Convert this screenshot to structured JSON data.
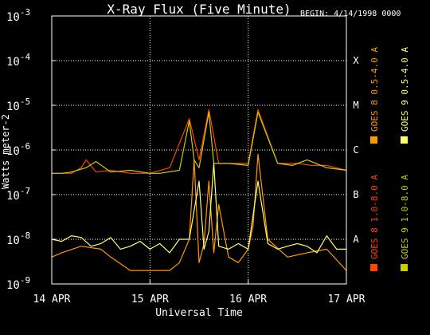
{
  "chart_data": {
    "type": "line",
    "title": "X-Ray Flux (Five Minute)",
    "begin_label": "BEGIN: 4/14/1998 0000",
    "xlabel": "Universal Time",
    "ylabel": "Watts meter-2",
    "x_ticks": [
      "14 APR",
      "15 APR",
      "16 APR",
      "17 APR"
    ],
    "x_range_days": [
      0,
      3
    ],
    "y_scale": "log",
    "ylim": [
      1e-09,
      0.001
    ],
    "y_ticks": [
      {
        "base": "10",
        "exp": "-3",
        "value": 0.001
      },
      {
        "base": "10",
        "exp": "-4",
        "value": 0.0001
      },
      {
        "base": "10",
        "exp": "-5",
        "value": 1e-05
      },
      {
        "base": "10",
        "exp": "-6",
        "value": 1e-06
      },
      {
        "base": "10",
        "exp": "-7",
        "value": 1e-07
      },
      {
        "base": "10",
        "exp": "-8",
        "value": 1e-08
      },
      {
        "base": "10",
        "exp": "-9",
        "value": 1e-09
      }
    ],
    "flare_classes": [
      {
        "label": "X",
        "value": 0.0001
      },
      {
        "label": "M",
        "value": 1e-05
      },
      {
        "label": "C",
        "value": 1e-06
      },
      {
        "label": "B",
        "value": 1e-07
      },
      {
        "label": "A",
        "value": 1e-08
      }
    ],
    "grid": "dotted",
    "legend_position": "right",
    "series": [
      {
        "name": "GOES 8 1.0-8.0 A",
        "color": "#ff4400",
        "x": [
          0,
          0.1,
          0.2,
          0.3,
          0.35,
          0.45,
          0.6,
          0.8,
          1.0,
          1.2,
          1.4,
          1.5,
          1.6,
          1.7,
          1.8,
          2.0,
          2.1,
          2.3,
          2.5,
          2.65,
          2.8,
          3.0
        ],
        "y": [
          3e-07,
          3e-07,
          3e-07,
          4e-07,
          6e-07,
          3.2e-07,
          3.5e-07,
          3e-07,
          3e-07,
          4e-07,
          5e-06,
          6e-07,
          8e-06,
          5e-07,
          5e-07,
          5e-07,
          8e-06,
          5e-07,
          5e-07,
          4.5e-07,
          4.5e-07,
          3.5e-07
        ]
      },
      {
        "name": "GOES 8 0.5-4.0 A",
        "color": "#ff9900",
        "x": [
          0,
          0.1,
          0.3,
          0.5,
          0.6,
          0.8,
          1.0,
          1.2,
          1.3,
          1.4,
          1.45,
          1.5,
          1.55,
          1.6,
          1.65,
          1.7,
          1.8,
          1.9,
          2.0,
          2.05,
          2.1,
          2.2,
          2.4,
          2.6,
          2.8,
          3.0
        ],
        "y": [
          4e-09,
          5e-09,
          7e-09,
          6e-09,
          4e-09,
          2e-09,
          2e-09,
          2e-09,
          3e-09,
          1e-08,
          6e-07,
          3e-09,
          8e-09,
          2e-07,
          5e-09,
          6e-08,
          4e-09,
          3e-09,
          6e-09,
          2e-08,
          8e-07,
          1e-08,
          4e-09,
          5e-09,
          6e-09,
          2e-09
        ]
      },
      {
        "name": "GOES 9 1.0-8.0 A",
        "color": "#cccc00",
        "x": [
          0,
          0.1,
          0.2,
          0.35,
          0.45,
          0.6,
          0.8,
          1.0,
          1.1,
          1.3,
          1.4,
          1.45,
          1.5,
          1.6,
          1.65,
          1.8,
          2.0,
          2.1,
          2.3,
          2.45,
          2.6,
          2.8,
          3.0
        ],
        "y": [
          3e-07,
          3e-07,
          3.2e-07,
          4e-07,
          5.5e-07,
          3.2e-07,
          3.5e-07,
          3e-07,
          3e-07,
          3.5e-07,
          4.5e-06,
          6e-07,
          4e-07,
          7e-06,
          5e-07,
          5e-07,
          4.5e-07,
          7e-06,
          5e-07,
          4.5e-07,
          6e-07,
          4e-07,
          3.5e-07
        ]
      },
      {
        "name": "GOES 9 0.5-4.0 A",
        "color": "#ffff66",
        "x": [
          0,
          0.1,
          0.2,
          0.3,
          0.4,
          0.5,
          0.6,
          0.7,
          0.8,
          0.9,
          1.0,
          1.1,
          1.2,
          1.3,
          1.4,
          1.5,
          1.55,
          1.6,
          1.65,
          1.7,
          1.8,
          1.9,
          2.0,
          2.1,
          2.2,
          2.3,
          2.4,
          2.5,
          2.6,
          2.7,
          2.8,
          2.9,
          3.0
        ],
        "y": [
          1e-08,
          9e-09,
          1.2e-08,
          1.1e-08,
          7e-09,
          8e-09,
          1.1e-08,
          6e-09,
          7e-09,
          9e-09,
          6e-09,
          8e-09,
          5e-09,
          1e-08,
          1e-08,
          2e-07,
          6e-09,
          1.5e-08,
          5e-07,
          7e-09,
          6e-09,
          8e-09,
          6e-09,
          2e-07,
          8e-09,
          6e-09,
          7e-09,
          8e-09,
          7e-09,
          5e-09,
          1.2e-08,
          6e-09,
          6e-09
        ]
      }
    ]
  }
}
